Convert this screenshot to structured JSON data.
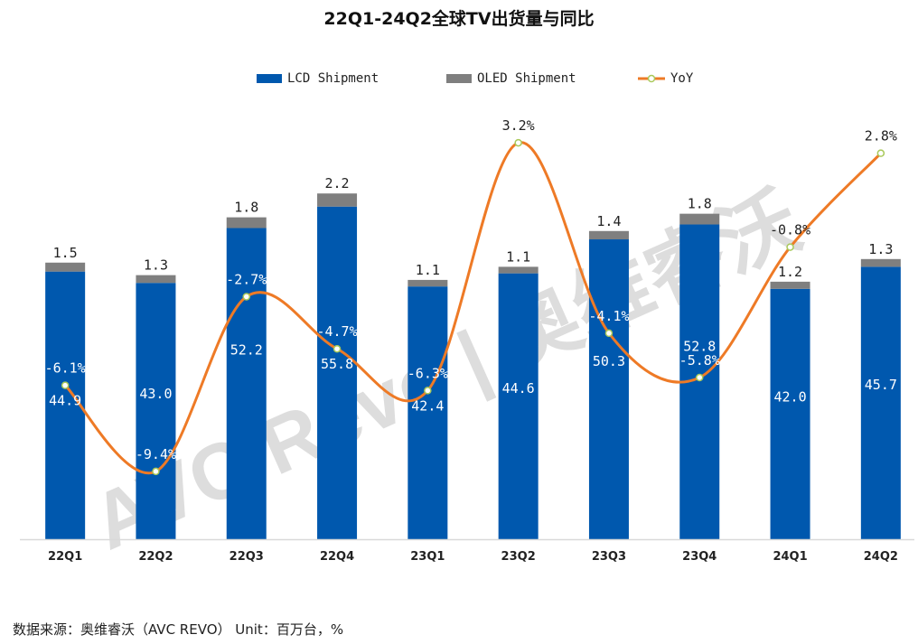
{
  "chart_data": {
    "type": "bar",
    "title": "22Q1-24Q2全球TV出货量与同比",
    "categories": [
      "22Q1",
      "22Q2",
      "22Q3",
      "22Q4",
      "23Q1",
      "23Q2",
      "23Q3",
      "23Q4",
      "24Q1",
      "24Q2"
    ],
    "series": [
      {
        "name": "LCD Shipment",
        "type": "bar",
        "stacked": true,
        "color": "#0058ae",
        "values": [
          44.9,
          43.0,
          52.2,
          55.8,
          42.4,
          44.6,
          50.3,
          52.8,
          42.0,
          45.7
        ]
      },
      {
        "name": "OLED Shipment",
        "type": "bar",
        "stacked": true,
        "color": "#7f7f7f",
        "values": [
          1.5,
          1.3,
          1.8,
          2.2,
          1.1,
          1.1,
          1.4,
          1.8,
          1.2,
          1.3
        ]
      },
      {
        "name": "YoY",
        "type": "line",
        "smooth": true,
        "axis": "secondary",
        "color": "#ee7a26",
        "unit": "%",
        "values": [
          -6.1,
          -9.4,
          -2.7,
          -4.7,
          -6.3,
          3.2,
          -4.1,
          -5.8,
          -0.8,
          2.8
        ]
      }
    ],
    "ylim": [
      0,
      70
    ],
    "y2lim": [
      -12,
      4
    ],
    "grid": false,
    "legend": "top"
  },
  "watermark": "AVC Revo|奥维睿沃",
  "source": "数据来源：奥维睿沃（AVC REVO） Unit：百万台，%"
}
